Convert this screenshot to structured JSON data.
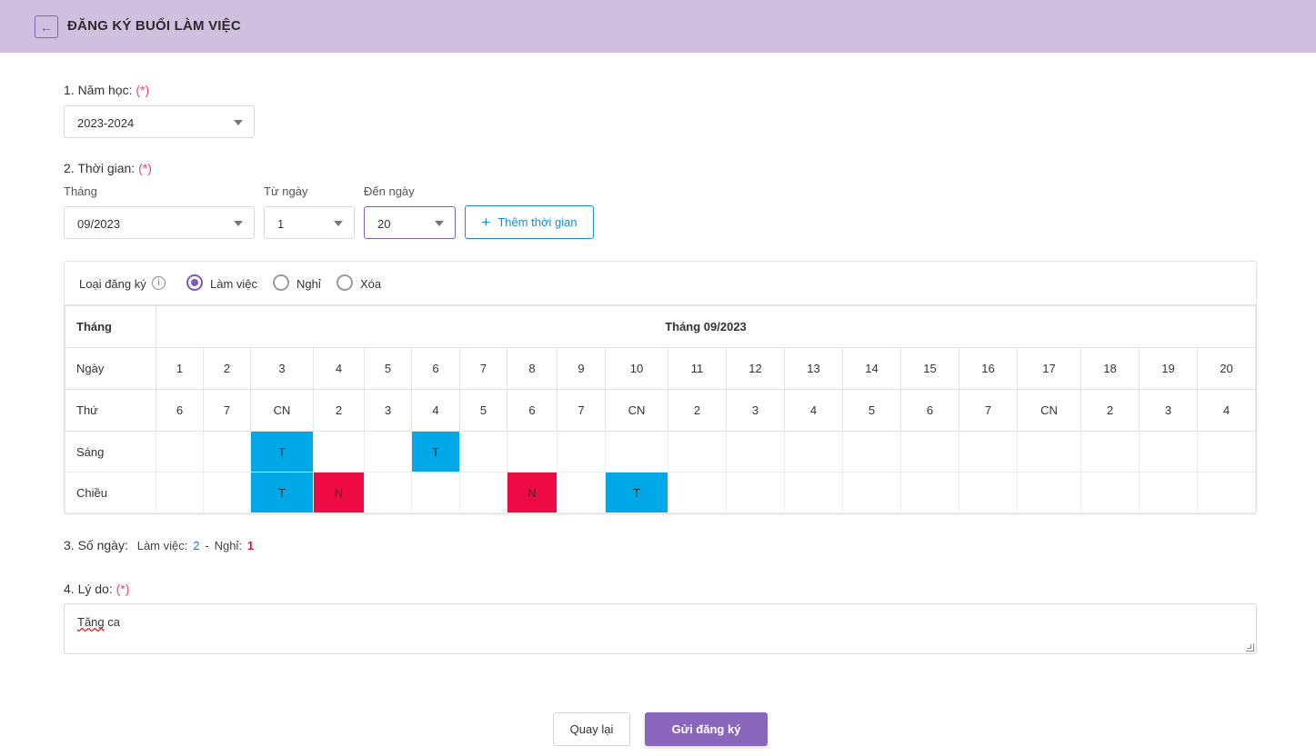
{
  "header": {
    "title": "ĐĂNG KÝ BUỔI LÀM VIỆC",
    "back_icon": "arrow-left-icon"
  },
  "section1": {
    "label": "1. Năm học:",
    "required": "(*)",
    "year_value": "2023-2024"
  },
  "section2": {
    "label": "2. Thời gian:",
    "required": "(*)",
    "month_label": "Tháng",
    "month_value": "09/2023",
    "from_label": "Từ ngày",
    "from_value": "1",
    "to_label": "Đến ngày",
    "to_value": "20",
    "add_button": "Thêm thời gian"
  },
  "register_type": {
    "label": "Loại đăng ký",
    "options": [
      "Làm việc",
      "Nghỉ",
      "Xóa"
    ],
    "selected": "Làm việc"
  },
  "calendar": {
    "month_header": "Tháng",
    "month_title": "Tháng 09/2023",
    "day_header": "Ngày",
    "weekday_header": "Thứ",
    "morning_label": "Sáng",
    "afternoon_label": "Chiều",
    "days": [
      "1",
      "2",
      "3",
      "4",
      "5",
      "6",
      "7",
      "8",
      "9",
      "10",
      "11",
      "12",
      "13",
      "14",
      "15",
      "16",
      "17",
      "18",
      "19",
      "20"
    ],
    "weekdays": [
      "6",
      "7",
      "CN",
      "2",
      "3",
      "4",
      "5",
      "6",
      "7",
      "CN",
      "2",
      "3",
      "4",
      "5",
      "6",
      "7",
      "CN",
      "2",
      "3",
      "4"
    ],
    "morning": [
      "",
      "",
      "T",
      "",
      "",
      "T",
      "",
      "",
      "",
      "",
      "",
      "",
      "",
      "",
      "",
      "",
      "",
      "",
      "",
      ""
    ],
    "afternoon": [
      "",
      "",
      "T",
      "N",
      "",
      "",
      "",
      "N",
      "",
      "T",
      "",
      "",
      "",
      "",
      "",
      "",
      "",
      "",
      "",
      ""
    ]
  },
  "section3": {
    "label": "3. Số ngày:",
    "work_label": "Làm việc:",
    "work_count": "2",
    "separator": "-",
    "off_label": "Nghỉ:",
    "off_count": "1"
  },
  "section4": {
    "label": "4. Lý do:",
    "required": "(*)",
    "reason_value": "Tăng ca"
  },
  "footer": {
    "back_label": "Quay lại",
    "submit_label": "Gửi đăng ký"
  },
  "colors": {
    "header_bg": "#cfc0e0",
    "accent": "#8a66bd",
    "work_cell": "#00a8e8",
    "off_cell": "#ee0a45",
    "sunday": "#e8457a"
  }
}
